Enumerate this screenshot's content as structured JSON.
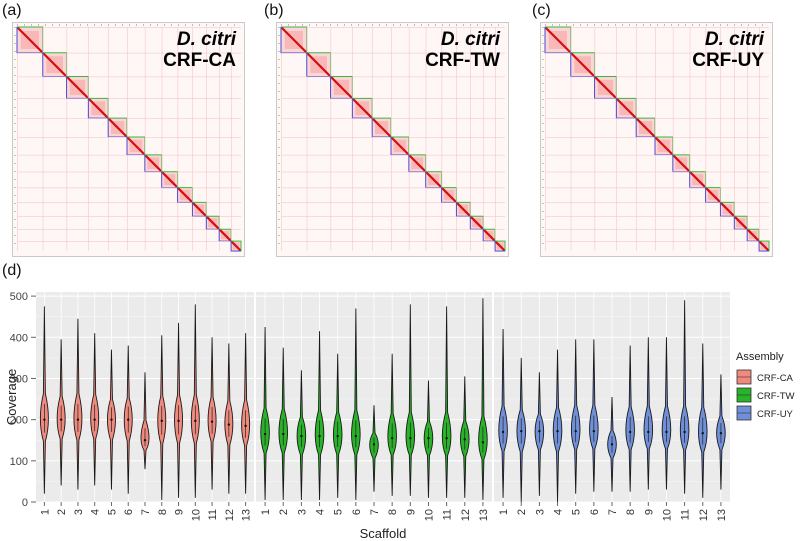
{
  "panels": [
    {
      "letter": "(a)",
      "species": "D. citri",
      "strain": "CRF-CA"
    },
    {
      "letter": "(b)",
      "species": "D. citri",
      "strain": "CRF-TW"
    },
    {
      "letter": "(c)",
      "species": "D. citri",
      "strain": "CRF-UY"
    }
  ],
  "hic_scaffold_count": 13,
  "violin_panel": {
    "letter": "(d)"
  },
  "chart_data": {
    "type": "violin",
    "xlabel": "Scaffold",
    "ylabel": "Coverage",
    "ylim": [
      0,
      510
    ],
    "y_ticks": [
      0,
      100,
      200,
      300,
      400,
      500
    ],
    "categories": [
      "1",
      "2",
      "3",
      "4",
      "5",
      "6",
      "7",
      "8",
      "9",
      "10",
      "11",
      "12",
      "13"
    ],
    "legend": {
      "title": "Assembly",
      "position": "right"
    },
    "series": [
      {
        "name": "CRF-CA",
        "color": "#f08a7e",
        "median": [
          200,
          200,
          200,
          200,
          200,
          200,
          150,
          197,
          197,
          197,
          195,
          188,
          185
        ],
        "min": [
          20,
          40,
          30,
          40,
          30,
          20,
          80,
          5,
          10,
          10,
          30,
          20,
          20
        ],
        "max": [
          475,
          395,
          445,
          410,
          370,
          380,
          315,
          405,
          435,
          480,
          400,
          385,
          410
        ]
      },
      {
        "name": "CRF-TW",
        "color": "#28b328",
        "median": [
          165,
          165,
          160,
          160,
          160,
          160,
          140,
          155,
          155,
          155,
          155,
          152,
          145
        ],
        "min": [
          5,
          5,
          5,
          5,
          10,
          5,
          25,
          15,
          15,
          10,
          10,
          10,
          5
        ],
        "max": [
          425,
          375,
          320,
          415,
          360,
          470,
          235,
          360,
          480,
          295,
          475,
          305,
          495
        ]
      },
      {
        "name": "CRF-UY",
        "color": "#6f8fd9",
        "median": [
          170,
          172,
          172,
          172,
          172,
          172,
          140,
          170,
          170,
          170,
          170,
          167,
          167
        ],
        "min": [
          10,
          0,
          15,
          0,
          20,
          25,
          25,
          25,
          30,
          30,
          20,
          10,
          30
        ],
        "max": [
          420,
          350,
          315,
          370,
          395,
          395,
          255,
          380,
          400,
          400,
          490,
          385,
          310
        ]
      }
    ]
  }
}
